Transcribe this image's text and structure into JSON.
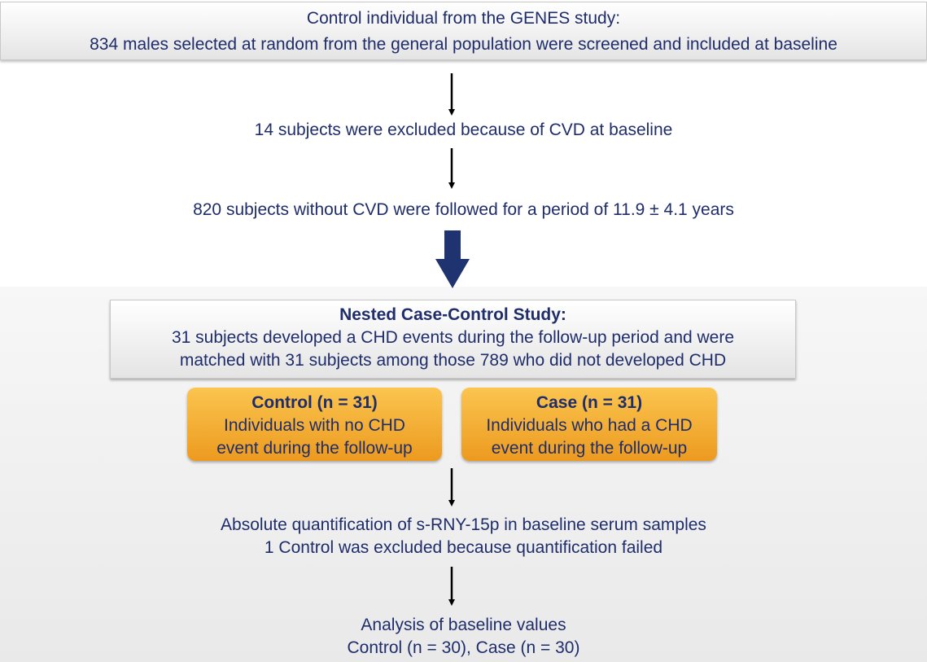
{
  "header": {
    "lines": [
      "Control individual from the GENES study:",
      "834 males selected at random from the general population were screened and included at baseline"
    ]
  },
  "steps": [
    "14 subjects were excluded because of CVD at baseline",
    "820 subjects without CVD were followed for a period of 11.9 ± 4.1 years"
  ],
  "nested_study": {
    "title": "Nested Case-Control Study:",
    "lines": [
      "31 subjects developed a CHD events during the follow-up period and were",
      "matched with 31 subjects among those 789 who did not developed CHD"
    ]
  },
  "groups": [
    {
      "title": "Control (n = 31)",
      "lines": [
        "Individuals with no CHD",
        "event during the follow-up"
      ]
    },
    {
      "title": "Case (n = 31)",
      "lines": [
        "Individuals who had a CHD",
        "event during the follow-up"
      ]
    }
  ],
  "quantification": {
    "lines": [
      "Absolute quantification of s-RNY-15p in baseline serum samples",
      "1 Control was excluded because quantification failed"
    ]
  },
  "analysis": {
    "lines": [
      "Analysis of baseline values",
      "Control (n = 30), Case (n = 30)"
    ]
  }
}
